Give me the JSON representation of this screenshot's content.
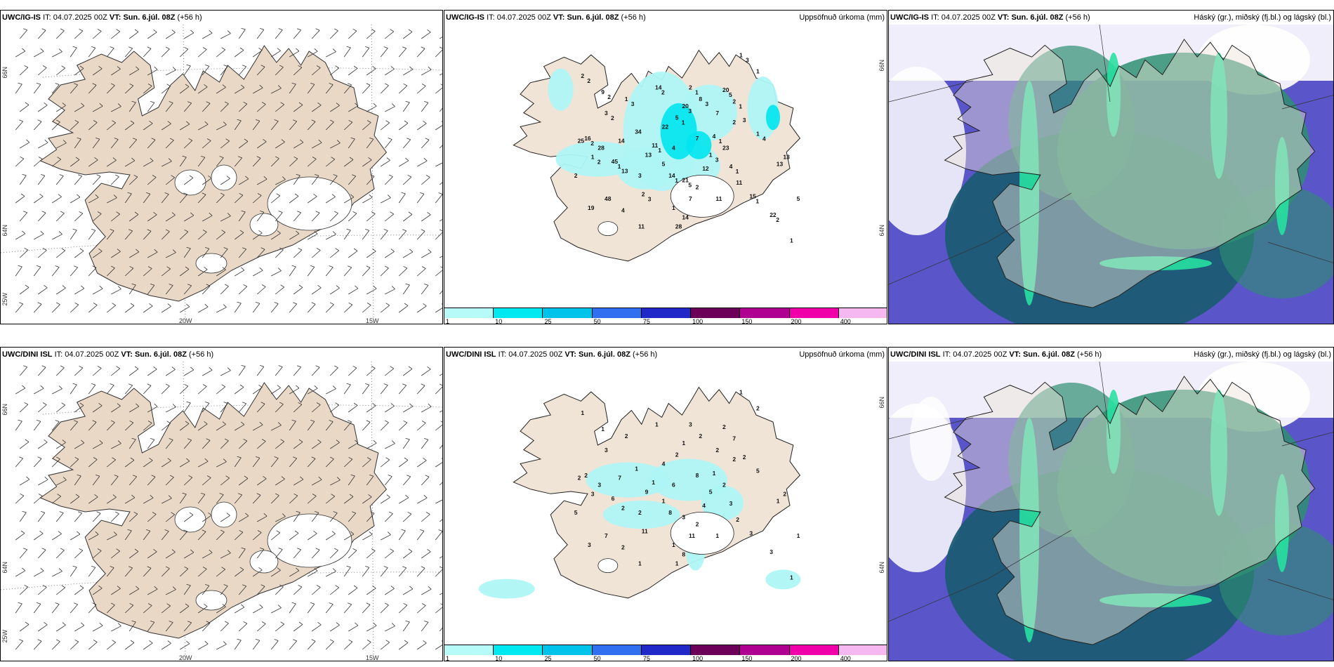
{
  "common": {
    "it_label": "IT:",
    "it_value": "04.07.2025 00Z",
    "vt_label": "VT:",
    "vt_value": "Sun. 6.júl. 08Z",
    "lead": "(+56 h)"
  },
  "rows": [
    {
      "model": "UWC/IG-IS",
      "wind_panel": {
        "lon_labels": [
          "20W",
          "15W"
        ],
        "lat_labels": [
          "66N",
          "64N",
          "25W"
        ]
      },
      "precip_panel": {
        "right_label": "Uppsöfnuð úrkoma (mm)",
        "lat_labels": [
          "66N",
          "64N"
        ],
        "values": [
          "1",
          "2",
          "16",
          "14",
          "11",
          "9",
          "3",
          "1",
          "1",
          "2",
          "8",
          "5",
          "20",
          "20",
          "2",
          "1",
          "15",
          "22",
          "4",
          "1",
          "4",
          "14",
          "21",
          "2",
          "45",
          "2",
          "34",
          "22",
          "14",
          "13",
          "4",
          "7",
          "12",
          "7",
          "3",
          "23",
          "48",
          "19",
          "1",
          "11",
          "28",
          "2",
          "2",
          "1",
          "25",
          "28",
          "13",
          "3",
          "5",
          "7",
          "11",
          "11",
          "13",
          "13",
          "1",
          "5",
          "14",
          "4",
          "3",
          "2",
          "2",
          "2",
          "1",
          "2",
          "2",
          "3",
          "2",
          "1",
          "3",
          "1",
          "3",
          "5",
          "1",
          "4",
          "1",
          "2",
          "1",
          "3",
          "1",
          "1",
          "5",
          "3",
          "1"
        ]
      },
      "cloud_panel": {
        "right_label": "Háský (gr.), miðský (fj.bl.) og lágský (bl.)"
      }
    },
    {
      "model": "UWC/DINI ISL",
      "wind_panel": {
        "lon_labels": [
          "20W",
          "15W"
        ],
        "lat_labels": [
          "66N",
          "64N",
          "25W"
        ]
      },
      "precip_panel": {
        "right_label": "Uppsöfnuð úrkoma (mm)",
        "lat_labels": [
          "66N",
          "64N"
        ],
        "values": [
          "1",
          "1",
          "2",
          "1",
          "1",
          "1",
          "3",
          "2",
          "3",
          "3",
          "2",
          "2",
          "1",
          "2",
          "7",
          "5",
          "3",
          "3",
          "1",
          "5",
          "3",
          "8",
          "3",
          "11",
          "6",
          "5",
          "1",
          "4",
          "7",
          "9",
          "6",
          "8",
          "4",
          "2",
          "2",
          "2",
          "7",
          "3",
          "1",
          "1",
          "1",
          "2",
          "2",
          "2",
          "2",
          "3",
          "2",
          "2",
          "1",
          "11",
          "1",
          "2",
          "1",
          "2",
          "1",
          "1",
          "8",
          "2"
        ]
      },
      "cloud_panel": {
        "right_label": "Háský (gr.), miðský (fj.bl.) og lágský (bl.)"
      }
    }
  ],
  "colorbar": {
    "labels": [
      "1",
      "10",
      "25",
      "50",
      "75",
      "100",
      "150",
      "200",
      "400"
    ],
    "colors": [
      "#b6fbf8",
      "#00e8f0",
      "#00c3ec",
      "#2f6ff0",
      "#2128c8",
      "#6c0058",
      "#b00092",
      "#f000a8",
      "#f5b8f0"
    ]
  },
  "colors": {
    "land": "#f0e4d6",
    "land_wind": "#ead8c6",
    "precip_light": "#aef5f6",
    "precip_mid": "#00e6f0",
    "cloud_high": "#2f8f72",
    "cloud_mid": "#1c5c74",
    "cloud_low": "#5a55c8",
    "cloud_green": "#28e0a0"
  }
}
